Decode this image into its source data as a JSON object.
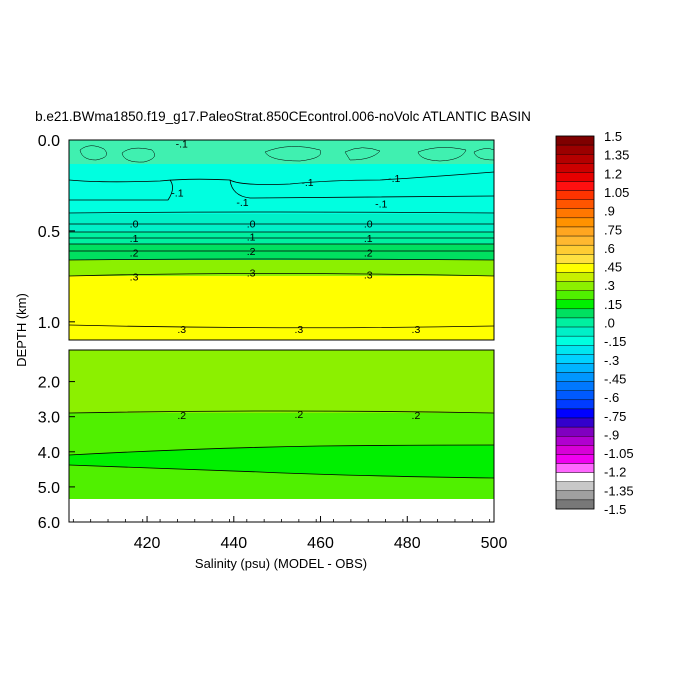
{
  "chart_data": {
    "type": "heatmap",
    "title": "b.e21.BWma1850.f19_g17.PaleoStrat.850CEcontrol.006-noVolc ATLANTIC BASIN",
    "xlabel": "Salinity (psu) (MODEL - OBS)",
    "ylabel": "DEPTH (km)",
    "x_ticks": [
      "420",
      "440",
      "460",
      "480",
      "500"
    ],
    "x_tick_values": [
      420,
      440,
      460,
      480,
      500
    ],
    "xlim": [
      402,
      500
    ],
    "upper_panel": {
      "y_ticks": [
        "0.0",
        "0.5",
        "1.0"
      ],
      "y_tick_values": [
        0.0,
        0.5,
        1.0
      ],
      "ylim": [
        0.0,
        1.1
      ]
    },
    "lower_panel": {
      "y_ticks": [
        "2.0",
        "3.0",
        "4.0",
        "5.0",
        "6.0"
      ],
      "y_tick_values": [
        2.0,
        3.0,
        4.0,
        5.0,
        6.0
      ],
      "ylim": [
        1.1,
        6.0
      ]
    },
    "colorbar": {
      "labels": [
        "1.5",
        "1.35",
        "1.2",
        "1.05",
        ".9",
        ".75",
        ".6",
        ".45",
        ".3",
        ".15",
        ".0",
        "-.15",
        "-.3",
        "-.45",
        "-.6",
        "-.75",
        "-.9",
        "-1.05",
        "-1.2",
        "-1.35",
        "-1.5"
      ],
      "colors": [
        "#7f0000",
        "#9b0000",
        "#b40000",
        "#cc0000",
        "#e60000",
        "#ff1010",
        "#ff3300",
        "#ff5500",
        "#ff7700",
        "#ff9200",
        "#ffa620",
        "#ffb830",
        "#ffcc33",
        "#ffe040",
        "#ffff00",
        "#c8f000",
        "#8cf000",
        "#50f000",
        "#00f000",
        "#00e060",
        "#00f0a0",
        "#00f0c8",
        "#00ffe0",
        "#00e6f0",
        "#00d2ff",
        "#00b4ff",
        "#0096ff",
        "#0078ff",
        "#005aff",
        "#003cff",
        "#0000ff",
        "#3300cc",
        "#8000c0",
        "#b000d0",
        "#d800d8",
        "#f000f0",
        "#ff66ff",
        "#ffffff",
        "#c8c8c8",
        "#a0a0a0",
        "#787878"
      ]
    },
    "contour_labels": [
      {
        "text": "-.1",
        "x": 428,
        "d": 0.02
      },
      {
        "text": "-.1",
        "x": 427,
        "d": 0.29
      },
      {
        "text": "-.1",
        "x": 457,
        "d": 0.23
      },
      {
        "text": "-.1",
        "x": 477,
        "d": 0.21
      },
      {
        "text": "-.1",
        "x": 442,
        "d": 0.34
      },
      {
        "text": "-.1",
        "x": 474,
        "d": 0.35
      },
      {
        "text": ".0",
        "x": 417,
        "d": 0.46
      },
      {
        "text": ".0",
        "x": 444,
        "d": 0.46
      },
      {
        "text": ".0",
        "x": 471,
        "d": 0.46
      },
      {
        "text": ".1",
        "x": 417,
        "d": 0.54
      },
      {
        "text": ".1",
        "x": 444,
        "d": 0.53
      },
      {
        "text": ".1",
        "x": 471,
        "d": 0.54
      },
      {
        "text": ".2",
        "x": 417,
        "d": 0.62
      },
      {
        "text": ".2",
        "x": 444,
        "d": 0.61
      },
      {
        "text": ".2",
        "x": 471,
        "d": 0.62
      },
      {
        "text": ".3",
        "x": 417,
        "d": 0.75
      },
      {
        "text": ".3",
        "x": 444,
        "d": 0.73
      },
      {
        "text": ".3",
        "x": 471,
        "d": 0.74
      },
      {
        "text": ".3",
        "x": 428,
        "d": 1.04
      },
      {
        "text": ".3",
        "x": 455,
        "d": 1.04
      },
      {
        "text": ".3",
        "x": 482,
        "d": 1.04
      },
      {
        "text": ".2",
        "x": 428,
        "d": 2.95
      },
      {
        "text": ".2",
        "x": 455,
        "d": 2.93
      },
      {
        "text": ".2",
        "x": 482,
        "d": 2.95
      }
    ]
  }
}
